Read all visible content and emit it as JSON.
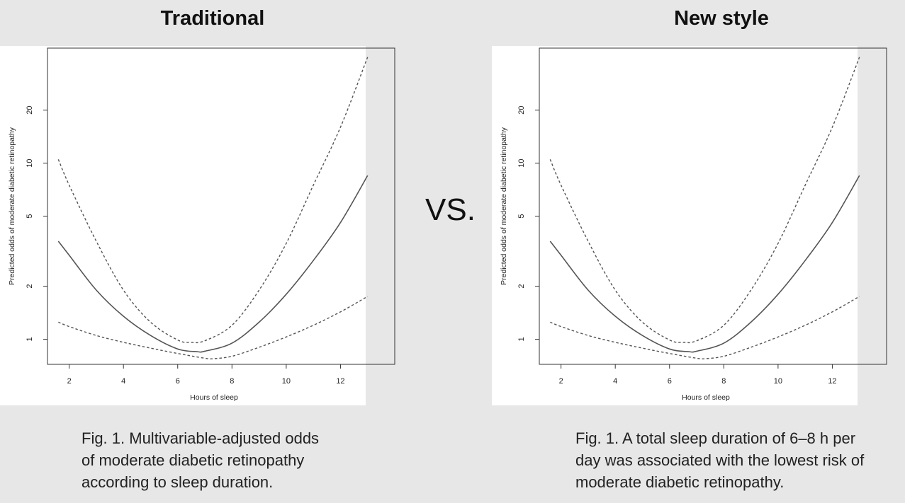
{
  "left": {
    "title": "Traditional",
    "caption": [
      "Fig. 1. Multivariable-adjusted odds",
      "of moderate diabetic retinopathy",
      "according to sleep duration."
    ]
  },
  "right": {
    "title": "New style",
    "caption": [
      "Fig. 1. A total sleep duration of 6–8 h per",
      "day was associated with the lowest risk of",
      "moderate diabetic retinopathy."
    ]
  },
  "separator": "VS.",
  "chart_data": [
    {
      "type": "line",
      "panel": "left",
      "xlabel": "Hours of sleep",
      "ylabel": "Predicted odds of moderate diabetic retinopathy",
      "xlim": [
        1.2,
        14.0
      ],
      "ylim": [
        0.72,
        45.0
      ],
      "y_scale": "log",
      "xticks": [
        2,
        4,
        6,
        8,
        10,
        12
      ],
      "yticks": [
        1,
        2,
        5,
        10,
        20
      ],
      "series": [
        {
          "name": "estimate",
          "style": "solid",
          "x": [
            1.6,
            2,
            3,
            4,
            5,
            6,
            6.7,
            7,
            8,
            9,
            10,
            11,
            12,
            13
          ],
          "y": [
            3.6,
            3.0,
            1.9,
            1.35,
            1.05,
            0.88,
            0.85,
            0.855,
            0.95,
            1.25,
            1.8,
            2.8,
            4.6,
            8.5
          ]
        },
        {
          "name": "upper 95% CI",
          "style": "dashed",
          "x": [
            1.6,
            2,
            3,
            4,
            5,
            6,
            6.5,
            7,
            8,
            9,
            10,
            11,
            12,
            13
          ],
          "y": [
            10.5,
            7.5,
            3.6,
            1.9,
            1.25,
            0.99,
            0.96,
            0.98,
            1.2,
            1.9,
            3.5,
            7.5,
            16,
            40
          ]
        },
        {
          "name": "lower 95% CI",
          "style": "dashed",
          "x": [
            1.6,
            2,
            3,
            4,
            5,
            6,
            7,
            7.3,
            8,
            9,
            10,
            11,
            12,
            13
          ],
          "y": [
            1.25,
            1.18,
            1.05,
            0.96,
            0.89,
            0.83,
            0.78,
            0.775,
            0.8,
            0.9,
            1.03,
            1.2,
            1.43,
            1.75
          ]
        }
      ]
    },
    {
      "type": "line",
      "panel": "right",
      "xlabel": "Hours of sleep",
      "ylabel": "Predicted odds of moderate diabetic retinopathy",
      "xlim": [
        1.2,
        14.0
      ],
      "ylim": [
        0.72,
        45.0
      ],
      "y_scale": "log",
      "xticks": [
        2,
        4,
        6,
        8,
        10,
        12
      ],
      "yticks": [
        1,
        2,
        5,
        10,
        20
      ],
      "series": [
        {
          "name": "estimate",
          "style": "solid",
          "x": [
            1.6,
            2,
            3,
            4,
            5,
            6,
            6.7,
            7,
            8,
            9,
            10,
            11,
            12,
            13
          ],
          "y": [
            3.6,
            3.0,
            1.9,
            1.35,
            1.05,
            0.88,
            0.85,
            0.855,
            0.95,
            1.25,
            1.8,
            2.8,
            4.6,
            8.5
          ]
        },
        {
          "name": "upper 95% CI",
          "style": "dashed",
          "x": [
            1.6,
            2,
            3,
            4,
            5,
            6,
            6.5,
            7,
            8,
            9,
            10,
            11,
            12,
            13
          ],
          "y": [
            10.5,
            7.5,
            3.6,
            1.9,
            1.25,
            0.99,
            0.96,
            0.98,
            1.2,
            1.9,
            3.5,
            7.5,
            16,
            40
          ]
        },
        {
          "name": "lower 95% CI",
          "style": "dashed",
          "x": [
            1.6,
            2,
            3,
            4,
            5,
            6,
            7,
            7.3,
            8,
            9,
            10,
            11,
            12,
            13
          ],
          "y": [
            1.25,
            1.18,
            1.05,
            0.96,
            0.89,
            0.83,
            0.78,
            0.775,
            0.8,
            0.9,
            1.03,
            1.2,
            1.43,
            1.75
          ]
        }
      ]
    }
  ]
}
